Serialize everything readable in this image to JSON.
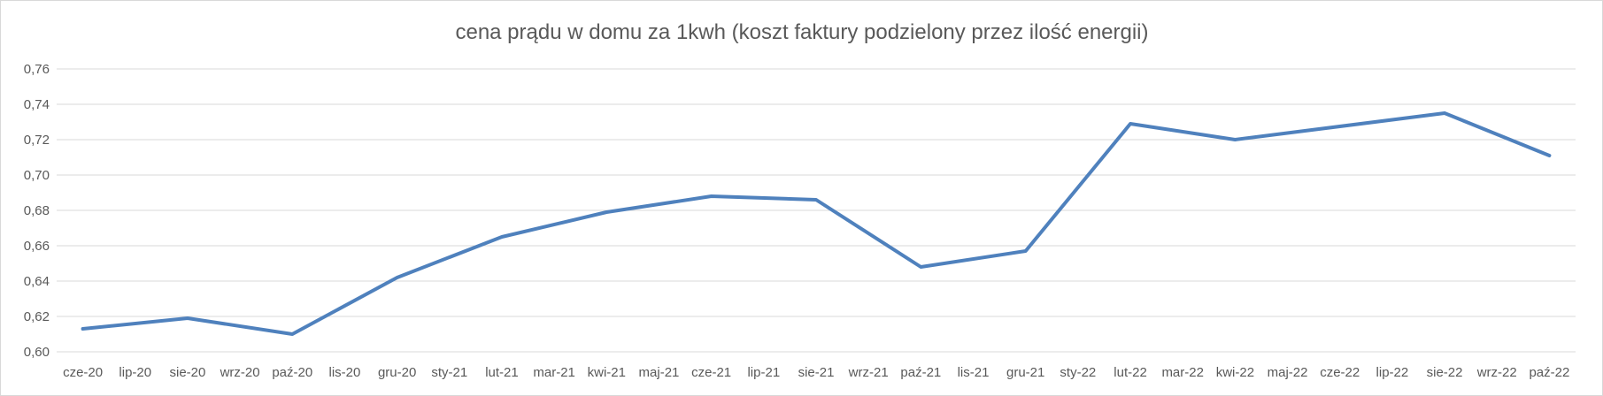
{
  "chart_data": {
    "type": "line",
    "title": "cena prądu w domu za 1kwh (koszt faktury podzielony przez ilość energii)",
    "xlabel": "",
    "ylabel": "",
    "categories": [
      "cze-20",
      "lip-20",
      "sie-20",
      "wrz-20",
      "paź-20",
      "lis-20",
      "gru-20",
      "sty-21",
      "lut-21",
      "mar-21",
      "kwi-21",
      "maj-21",
      "cze-21",
      "lip-21",
      "sie-21",
      "wrz-21",
      "paź-21",
      "lis-21",
      "gru-21",
      "sty-22",
      "lut-22",
      "mar-22",
      "kwi-22",
      "maj-22",
      "cze-22",
      "lip-22",
      "sie-22",
      "wrz-22",
      "paź-22"
    ],
    "series": [
      {
        "color": "#4f81bd",
        "values": [
          0.613,
          null,
          0.619,
          null,
          0.61,
          null,
          0.642,
          null,
          0.665,
          null,
          0.679,
          null,
          0.688,
          null,
          0.686,
          null,
          0.648,
          null,
          0.657,
          null,
          0.729,
          null,
          0.72,
          null,
          null,
          null,
          0.735,
          null,
          0.711
        ]
      }
    ],
    "ylim": [
      0.6,
      0.76
    ],
    "yticks": [
      "0,76",
      "0,74",
      "0,72",
      "0,70",
      "0,68",
      "0,66",
      "0,64",
      "0,62",
      "0,60"
    ],
    "ytick_values": [
      0.76,
      0.74,
      0.72,
      0.7,
      0.68,
      0.66,
      0.64,
      0.62,
      0.6
    ],
    "grid": true,
    "legend": "none"
  }
}
